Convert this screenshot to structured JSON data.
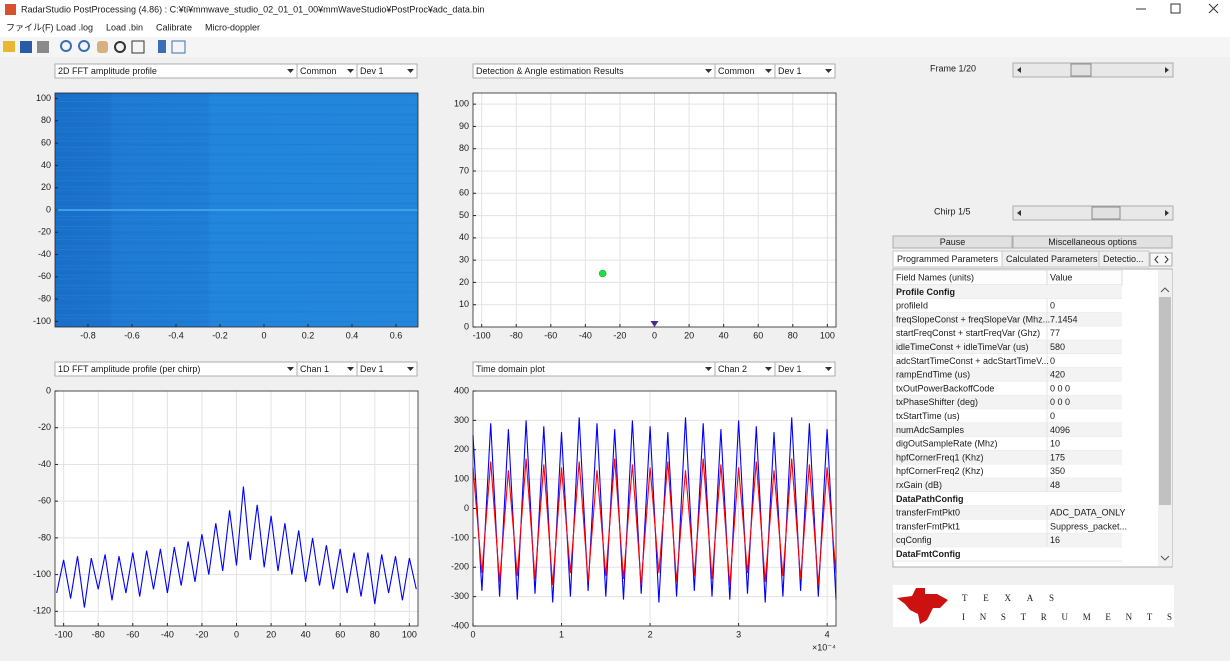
{
  "window": {
    "title": "RadarStudio PostProcessing (4.86) : C:¥ti¥mmwave_studio_02_01_01_00¥mmWaveStudio¥PostProc¥adc_data.bin"
  },
  "menu": [
    "ファイル(F)",
    "Load .log",
    "Load .bin",
    "Calibrate",
    "Micro-doppler"
  ],
  "plots": [
    {
      "type": "heatmap",
      "controls": [
        "2D FFT amplitude profile",
        "Common",
        "Dev 1"
      ],
      "xlim": [
        -0.95,
        0.7
      ],
      "xticks": [
        -0.8,
        -0.6,
        -0.4,
        -0.2,
        0,
        0.2,
        0.4,
        0.6
      ],
      "ylim": [
        -105,
        105
      ],
      "yticks": [
        -100,
        -80,
        -60,
        -40,
        -20,
        0,
        20,
        40,
        60,
        80,
        100
      ],
      "grid": false
    },
    {
      "type": "scatter",
      "controls": [
        "Detection & Angle estimation Results",
        "Common",
        "Dev 1"
      ],
      "xlim": [
        -105,
        105
      ],
      "xticks": [
        -100,
        -80,
        -60,
        -40,
        -20,
        0,
        20,
        40,
        60,
        80,
        100
      ],
      "ylim": [
        0,
        105
      ],
      "yticks": [
        0,
        10,
        20,
        30,
        40,
        50,
        60,
        70,
        80,
        90,
        100
      ],
      "grid": true,
      "points": [
        {
          "x": -30,
          "y": 24,
          "color": "#22dd44",
          "marker": "circle"
        },
        {
          "x": 0,
          "y": 0,
          "color": "#4b2a8c",
          "marker": "triangle"
        }
      ]
    },
    {
      "type": "line",
      "controls": [
        "1D FFT amplitude profile (per chirp)",
        "Chan 1",
        "Dev 1"
      ],
      "xlim": [
        -105,
        105
      ],
      "xticks": [
        -100,
        -80,
        -60,
        -40,
        -20,
        0,
        20,
        40,
        60,
        80,
        100
      ],
      "ylim": [
        -128,
        0
      ],
      "yticks": [
        -120,
        -100,
        -80,
        -60,
        -40,
        -20,
        0
      ],
      "grid": true,
      "x": [
        -104,
        -100,
        -96,
        -92,
        -88,
        -84,
        -80,
        -76,
        -72,
        -68,
        -64,
        -60,
        -56,
        -52,
        -48,
        -44,
        -40,
        -36,
        -32,
        -28,
        -24,
        -20,
        -16,
        -12,
        -8,
        -4,
        0,
        4,
        8,
        12,
        16,
        20,
        24,
        28,
        32,
        36,
        40,
        44,
        48,
        52,
        56,
        60,
        64,
        68,
        72,
        76,
        80,
        84,
        88,
        92,
        96,
        100,
        104
      ],
      "series": [
        {
          "color": "#0000ff",
          "values": [
            -110,
            -92,
            -113,
            -90,
            -118,
            -91,
            -108,
            -89,
            -114,
            -90,
            -110,
            -88,
            -112,
            -87,
            -108,
            -86,
            -110,
            -85,
            -106,
            -82,
            -104,
            -78,
            -100,
            -72,
            -98,
            -65,
            -95,
            -52,
            -92,
            -62,
            -96,
            -68,
            -98,
            -72,
            -100,
            -76,
            -104,
            -80,
            -106,
            -84,
            -108,
            -86,
            -110,
            -88,
            -112,
            -88,
            -116,
            -89,
            -110,
            -90,
            -114,
            -91,
            -108
          ]
        }
      ]
    },
    {
      "type": "line",
      "controls": [
        "Time domain plot",
        "Chan 2",
        "Dev 1"
      ],
      "xlim": [
        0,
        4.1
      ],
      "xticks": [
        0,
        1,
        2,
        3,
        4
      ],
      "x_exponent_label": "×10⁻⁴",
      "ylim": [
        -400,
        400
      ],
      "yticks": [
        -400,
        -300,
        -200,
        -100,
        0,
        100,
        200,
        300,
        400
      ],
      "grid": true,
      "x": [
        0,
        0.1,
        0.2,
        0.3,
        0.4,
        0.5,
        0.6,
        0.7,
        0.8,
        0.9,
        1,
        1.1,
        1.2,
        1.3,
        1.4,
        1.5,
        1.6,
        1.7,
        1.8,
        1.9,
        2,
        2.1,
        2.2,
        2.3,
        2.4,
        2.5,
        2.6,
        2.7,
        2.8,
        2.9,
        3,
        3.1,
        3.2,
        3.3,
        3.4,
        3.5,
        3.6,
        3.7,
        3.8,
        3.9,
        4,
        4.1
      ],
      "series": [
        {
          "color": "#0000ff",
          "values": [
            250,
            -280,
            290,
            -300,
            270,
            -310,
            300,
            -290,
            280,
            -320,
            260,
            -300,
            310,
            -280,
            290,
            -300,
            270,
            -310,
            300,
            -290,
            280,
            -320,
            260,
            -300,
            310,
            -280,
            290,
            -300,
            270,
            -310,
            300,
            -290,
            280,
            -320,
            260,
            -300,
            310,
            -280,
            290,
            -300,
            270,
            -310
          ]
        },
        {
          "color": "#ff0000",
          "values": [
            140,
            -220,
            160,
            -250,
            130,
            -230,
            170,
            -240,
            150,
            -260,
            140,
            -220,
            160,
            -250,
            130,
            -230,
            170,
            -240,
            150,
            -260,
            140,
            -220,
            160,
            -250,
            130,
            -230,
            170,
            -240,
            150,
            -260,
            140,
            -220,
            160,
            -250,
            130,
            -230,
            170,
            -240,
            150,
            -260,
            140,
            -220
          ]
        }
      ]
    }
  ],
  "frame_label": "Frame 1/20",
  "chirp_label": "Chirp 1/5",
  "buttons": [
    "Pause",
    "Miscellaneous options"
  ],
  "tabs": [
    "Programmed Parameters",
    "Calculated Parameters",
    "Detectio..."
  ],
  "table": {
    "header": [
      "Field Names   (units)",
      "Value"
    ],
    "rows": [
      [
        "Profile Config"
      ],
      [
        "profileId",
        "0"
      ],
      [
        "freqSlopeConst + freqSlopeVar (Mhz...",
        "7.1454"
      ],
      [
        "startFreqConst + startFreqVar (Ghz)",
        "77"
      ],
      [
        "idleTimeConst + idleTimeVar (us)",
        "580"
      ],
      [
        "adcStartTimeConst + adcStartTimeV...",
        "0"
      ],
      [
        "rampEndTime (us)",
        "420"
      ],
      [
        "txOutPowerBackoffCode",
        "0 0 0"
      ],
      [
        "txPhaseShifter (deg)",
        "0 0 0"
      ],
      [
        "txStartTime (us)",
        "0"
      ],
      [
        "numAdcSamples",
        "4096"
      ],
      [
        "digOutSampleRate (Mhz)",
        "10"
      ],
      [
        "hpfCornerFreq1 (Khz)",
        "175"
      ],
      [
        "hpfCornerFreq2 (Khz)",
        "350"
      ],
      [
        "rxGain (dB)",
        "48"
      ],
      [
        "DataPathConfig"
      ],
      [
        "transferFmtPkt0",
        "ADC_DATA_ONLY"
      ],
      [
        "transferFmtPkt1",
        "Suppress_packet..."
      ],
      [
        "cqConfig",
        "16"
      ],
      [
        "DataFmtConfig"
      ]
    ]
  },
  "logo": [
    "TEXAS",
    "INSTRUMENTS"
  ]
}
